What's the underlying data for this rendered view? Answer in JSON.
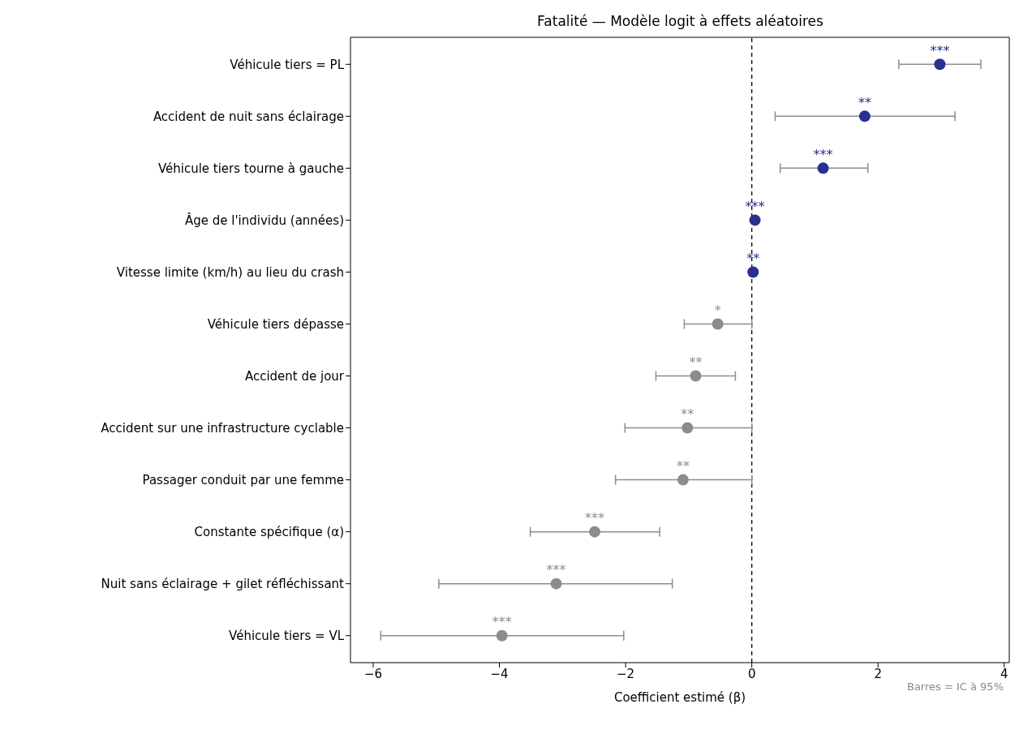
{
  "chart_data": {
    "type": "scatter",
    "title": "Fatalité — Modèle logit à effets aléatoires",
    "xlabel": "Coefficient estimé (β)",
    "orientation": "horizontal",
    "categories": [
      "Véhicule tiers = PL",
      "Accident de nuit sans éclairage",
      "Véhicule tiers tourne à gauche",
      "Âge de l'individu (années)",
      "Vitesse limite (km/h) au lieu du crash",
      "Véhicule tiers dépasse",
      "Accident de jour",
      "Accident sur une infrastructure cyclable",
      "Passager conduit par une femme",
      "Constante spécifique (α)",
      "Nuit sans éclairage + gilet réfléchissant",
      "Véhicule tiers = VL"
    ],
    "series": [
      {
        "color": "#2b2f8f",
        "values": [
          2.98,
          1.79,
          1.13,
          0.05,
          0.02,
          null,
          null,
          null,
          null,
          null,
          null,
          null
        ],
        "errors": [
          [
            2.33,
            3.63
          ],
          [
            0.37,
            3.22
          ],
          [
            0.45,
            1.84
          ],
          null,
          null,
          null,
          null,
          null,
          null,
          null,
          null,
          null
        ],
        "value_labels": [
          "***",
          "**",
          "***",
          "***",
          "**",
          null,
          null,
          null,
          null,
          null,
          null,
          null
        ]
      },
      {
        "color": "#8c8c8c",
        "values": [
          null,
          null,
          null,
          null,
          null,
          -0.54,
          -0.89,
          -1.02,
          -1.09,
          -2.49,
          -3.1,
          -3.96
        ],
        "errors": [
          null,
          null,
          null,
          null,
          null,
          [
            -1.07,
            0.0
          ],
          [
            -1.52,
            -0.26
          ],
          [
            -2.01,
            0.0
          ],
          [
            -2.16,
            0.0
          ],
          [
            -3.51,
            -1.46
          ],
          [
            -4.96,
            -1.26
          ],
          [
            -5.88,
            -2.03
          ]
        ],
        "value_labels": [
          null,
          null,
          null,
          null,
          null,
          "*",
          "**",
          "**",
          "**",
          "***",
          "***",
          "***"
        ]
      }
    ],
    "xlim": [
      -6.36,
      4.08
    ],
    "xticks": [
      -6,
      -4,
      -2,
      0,
      2,
      4
    ],
    "ref_lines": [
      {
        "axis": "x",
        "value": 0,
        "color": "#000000",
        "line_style": "dashed"
      }
    ],
    "annotations": [
      "Barres = IC à 95%"
    ],
    "marker": "circle",
    "grid": false,
    "legend": false
  }
}
